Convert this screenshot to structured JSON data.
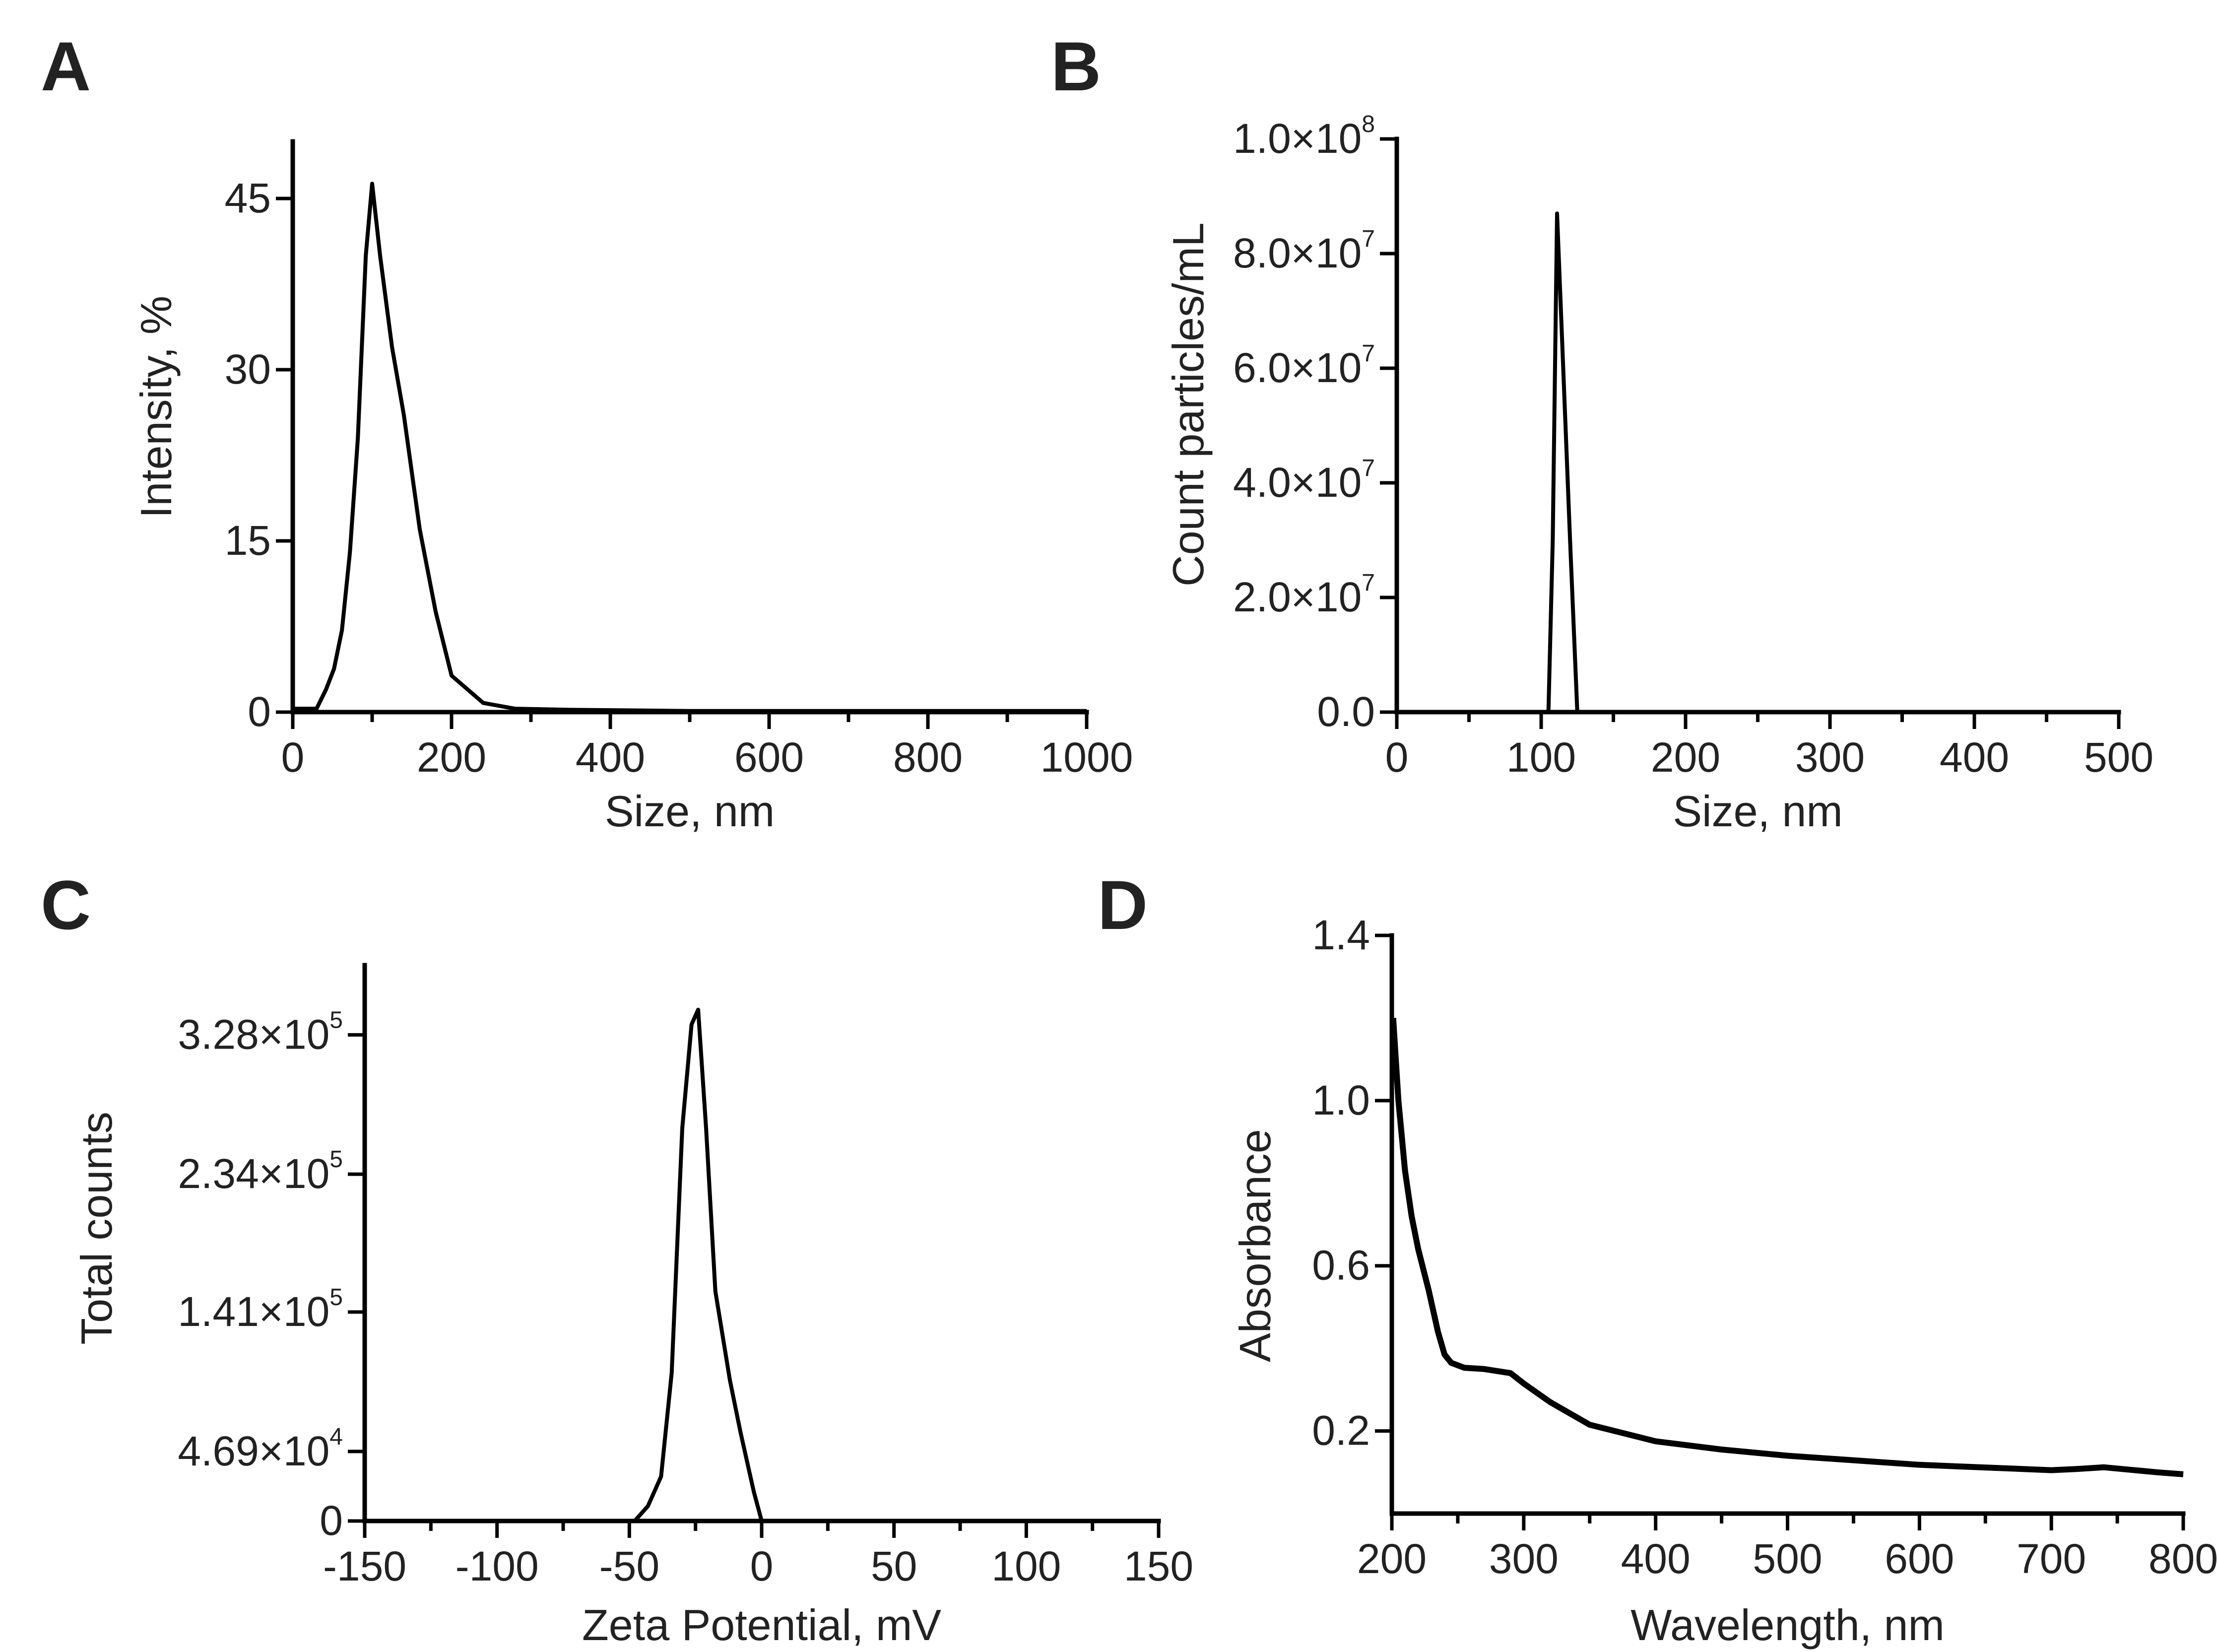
{
  "chart_data": [
    {
      "panel": "A",
      "type": "line",
      "xlabel": "Size, nm",
      "ylabel": "Intensity, %",
      "xlim": [
        0,
        1000
      ],
      "ylim": [
        0,
        50
      ],
      "xticks": [
        {
          "v": 0,
          "label": "0"
        },
        {
          "v": 200,
          "label": "200"
        },
        {
          "v": 400,
          "label": "400"
        },
        {
          "v": 600,
          "label": "600"
        },
        {
          "v": 800,
          "label": "800"
        },
        {
          "v": 1000,
          "label": "1000"
        }
      ],
      "xminor": [
        100,
        300,
        500,
        700,
        900
      ],
      "yticks": [
        {
          "v": 0,
          "label": "0"
        },
        {
          "v": 15,
          "label": "15"
        },
        {
          "v": 30,
          "label": "30"
        },
        {
          "v": 45,
          "label": "45"
        }
      ],
      "series": [
        {
          "name": "intensity",
          "x": [
            0,
            30,
            42,
            52,
            62,
            72,
            82,
            92,
            100,
            110,
            125,
            140,
            160,
            180,
            200,
            240,
            280,
            350,
            500,
            700,
            1000
          ],
          "y": [
            0.3,
            0.3,
            2.0,
            3.8,
            7.2,
            14,
            24,
            40,
            46.3,
            40,
            32,
            26,
            16,
            8.8,
            3.2,
            0.8,
            0.3,
            0.2,
            0.1,
            0.1,
            0.1
          ]
        }
      ]
    },
    {
      "panel": "B",
      "type": "line",
      "xlabel": "Size, nm",
      "ylabel": "Count particles/mL",
      "xlim": [
        0,
        500
      ],
      "ylim": [
        0,
        100000000
      ],
      "xticks": [
        {
          "v": 0,
          "label": "0"
        },
        {
          "v": 100,
          "label": "100"
        },
        {
          "v": 200,
          "label": "200"
        },
        {
          "v": 300,
          "label": "300"
        },
        {
          "v": 400,
          "label": "400"
        },
        {
          "v": 500,
          "label": "500"
        }
      ],
      "xminor": [
        50,
        150,
        250,
        350,
        450
      ],
      "yticks": [
        {
          "v": 0,
          "base": "0.0",
          "exp": ""
        },
        {
          "v": 20000000,
          "base": "2.0×10",
          "exp": "7"
        },
        {
          "v": 40000000,
          "base": "4.0×10",
          "exp": "7"
        },
        {
          "v": 60000000,
          "base": "6.0×10",
          "exp": "7"
        },
        {
          "v": 80000000,
          "base": "8.0×10",
          "exp": "7"
        },
        {
          "v": 100000000,
          "base": "1.0×10",
          "exp": "8"
        }
      ],
      "series": [
        {
          "name": "count",
          "x": [
            0,
            105,
            108,
            111,
            120,
            125,
            500
          ],
          "y": [
            0,
            0,
            30000000,
            87000000,
            30000000,
            0,
            0
          ]
        }
      ]
    },
    {
      "panel": "C",
      "type": "line",
      "xlabel": "Zeta Potential, mV",
      "ylabel": "Total counts",
      "xlim": [
        -150,
        150
      ],
      "ylim": [
        0,
        375000
      ],
      "xticks": [
        {
          "v": -150,
          "label": "-150"
        },
        {
          "v": -100,
          "label": "-100"
        },
        {
          "v": -50,
          "label": "-50"
        },
        {
          "v": 0,
          "label": "0"
        },
        {
          "v": 50,
          "label": "50"
        },
        {
          "v": 100,
          "label": "100"
        },
        {
          "v": 150,
          "label": "150"
        }
      ],
      "xminor": [
        -125,
        -75,
        -25,
        25,
        75,
        125
      ],
      "yticks": [
        {
          "v": 0,
          "base": "0",
          "exp": ""
        },
        {
          "v": 46900,
          "base": "4.69×10",
          "exp": "4"
        },
        {
          "v": 141000,
          "base": "1.41×10",
          "exp": "5"
        },
        {
          "v": 234000,
          "base": "2.34×10",
          "exp": "5"
        },
        {
          "v": 328000,
          "base": "3.28×10",
          "exp": "5"
        }
      ],
      "series": [
        {
          "name": "counts",
          "x": [
            -150,
            -48,
            -43,
            -38,
            -34,
            -30,
            -26.5,
            -24,
            -21,
            -17.5,
            -12,
            -8,
            -3,
            0,
            150
          ],
          "y": [
            0,
            0,
            10000,
            30000,
            100000,
            265000,
            335000,
            345000,
            265000,
            155000,
            95000,
            60000,
            20000,
            0,
            0
          ]
        }
      ]
    },
    {
      "panel": "D",
      "type": "line",
      "xlabel": "Wavelength, nm",
      "ylabel": "Absorbance",
      "xlim": [
        200,
        800
      ],
      "ylim": [
        0,
        1.4
      ],
      "xticks": [
        {
          "v": 200,
          "label": "200"
        },
        {
          "v": 300,
          "label": "300"
        },
        {
          "v": 400,
          "label": "400"
        },
        {
          "v": 500,
          "label": "500"
        },
        {
          "v": 600,
          "label": "600"
        },
        {
          "v": 700,
          "label": "700"
        },
        {
          "v": 800,
          "label": "800"
        }
      ],
      "xminor": [
        250,
        350,
        450,
        550,
        650,
        750
      ],
      "yticks": [
        {
          "v": 0.2,
          "label": "0.2"
        },
        {
          "v": 0.6,
          "label": "0.6"
        },
        {
          "v": 1.0,
          "label": "1.0"
        },
        {
          "v": 1.4,
          "label": "1.4"
        }
      ],
      "series": [
        {
          "name": "absorbance",
          "x": [
            201,
            205,
            210,
            215,
            220,
            228,
            235,
            240,
            245,
            255,
            270,
            290,
            300,
            320,
            350,
            400,
            450,
            500,
            600,
            700,
            720,
            740,
            760,
            780,
            800
          ],
          "y": [
            1.2,
            1.0,
            0.83,
            0.72,
            0.64,
            0.54,
            0.44,
            0.385,
            0.365,
            0.353,
            0.35,
            0.34,
            0.315,
            0.27,
            0.215,
            0.175,
            0.155,
            0.14,
            0.118,
            0.105,
            0.108,
            0.112,
            0.106,
            0.1,
            0.095
          ]
        }
      ]
    }
  ]
}
